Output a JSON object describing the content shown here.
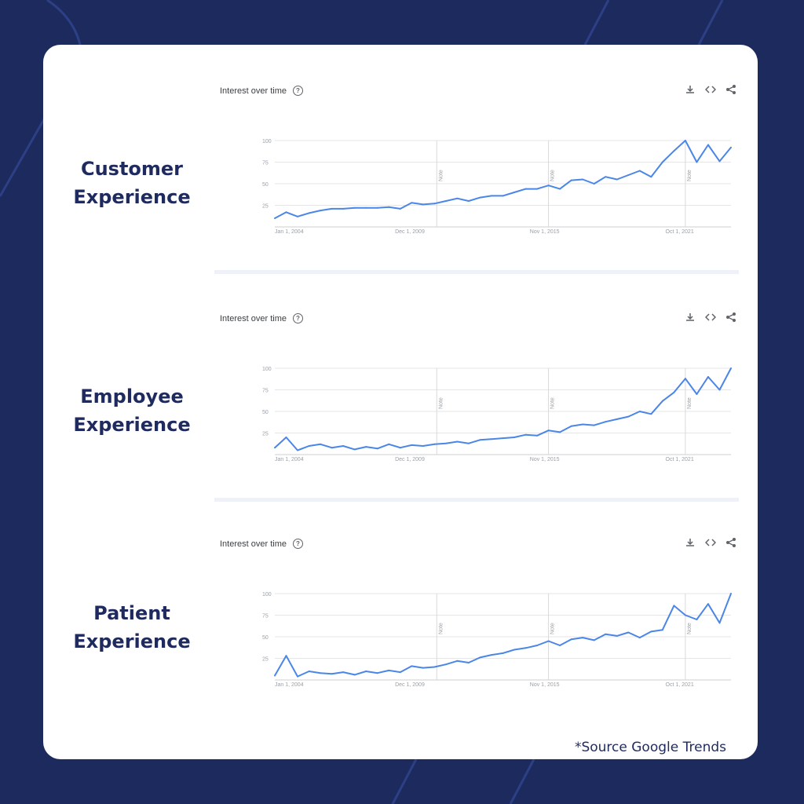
{
  "colors": {
    "background": "#1c2a5e",
    "card": "#ffffff",
    "label": "#1f2b5e",
    "line": "#4a86e8",
    "grid": "#e6e6e6"
  },
  "icons": [
    "download-icon",
    "embed-icon",
    "share-icon",
    "help-icon"
  ],
  "source_note": "*Source Google Trends",
  "sections": [
    {
      "label": "Customer\nExperience"
    },
    {
      "label": "Employee\nExperience"
    },
    {
      "label": "Patient\nExperience"
    }
  ],
  "chart_data": [
    {
      "type": "line",
      "title": "Interest over time",
      "y_ticks": [
        "100",
        "75",
        "50",
        "25"
      ],
      "ylim": [
        0,
        100
      ],
      "x_tick_labels": [
        "Jan 1, 2004",
        "Dec 1, 2009",
        "Nov 1, 2015",
        "Oct 1, 2021"
      ],
      "xlim": [
        2004,
        2024
      ],
      "x_ticks": [
        2004,
        2009.92,
        2015.83,
        2021.75
      ],
      "notes": [
        {
          "x": 2011.1,
          "label": "Note"
        },
        {
          "x": 2016.0,
          "label": "Note"
        },
        {
          "x": 2022.0,
          "label": "Note"
        }
      ],
      "x": [
        2004,
        2004.5,
        2005,
        2005.5,
        2006,
        2006.5,
        2007,
        2007.5,
        2008,
        2008.5,
        2009,
        2009.5,
        2010,
        2010.5,
        2011,
        2011.5,
        2012,
        2012.5,
        2013,
        2013.5,
        2014,
        2014.5,
        2015,
        2015.5,
        2016,
        2016.5,
        2017,
        2017.5,
        2018,
        2018.5,
        2019,
        2019.5,
        2020,
        2020.5,
        2021,
        2021.5,
        2022,
        2022.5,
        2023,
        2023.5,
        2024
      ],
      "values": [
        10,
        17,
        12,
        16,
        19,
        21,
        21,
        22,
        22,
        22,
        23,
        21,
        28,
        26,
        27,
        30,
        33,
        30,
        34,
        36,
        36,
        40,
        44,
        44,
        48,
        44,
        54,
        55,
        50,
        58,
        55,
        60,
        65,
        58,
        75,
        88,
        100,
        75,
        95,
        76,
        92
      ]
    },
    {
      "type": "line",
      "title": "Interest over time",
      "y_ticks": [
        "100",
        "75",
        "50",
        "25"
      ],
      "ylim": [
        0,
        100
      ],
      "x_tick_labels": [
        "Jan 1, 2004",
        "Dec 1, 2009",
        "Nov 1, 2015",
        "Oct 1, 2021"
      ],
      "xlim": [
        2004,
        2024
      ],
      "x_ticks": [
        2004,
        2009.92,
        2015.83,
        2021.75
      ],
      "notes": [
        {
          "x": 2011.1,
          "label": "Note"
        },
        {
          "x": 2016.0,
          "label": "Note"
        },
        {
          "x": 2022.0,
          "label": "Note"
        }
      ],
      "x": [
        2004,
        2004.5,
        2005,
        2005.5,
        2006,
        2006.5,
        2007,
        2007.5,
        2008,
        2008.5,
        2009,
        2009.5,
        2010,
        2010.5,
        2011,
        2011.5,
        2012,
        2012.5,
        2013,
        2013.5,
        2014,
        2014.5,
        2015,
        2015.5,
        2016,
        2016.5,
        2017,
        2017.5,
        2018,
        2018.5,
        2019,
        2019.5,
        2020,
        2020.5,
        2021,
        2021.5,
        2022,
        2022.5,
        2023,
        2023.5,
        2024
      ],
      "values": [
        8,
        20,
        5,
        10,
        12,
        8,
        10,
        6,
        9,
        7,
        12,
        8,
        11,
        10,
        12,
        13,
        15,
        13,
        17,
        18,
        19,
        20,
        23,
        22,
        28,
        26,
        33,
        35,
        34,
        38,
        41,
        44,
        50,
        47,
        62,
        72,
        88,
        70,
        90,
        75,
        100
      ]
    },
    {
      "type": "line",
      "title": "Interest over time",
      "y_ticks": [
        "100",
        "75",
        "50",
        "25"
      ],
      "ylim": [
        0,
        100
      ],
      "x_tick_labels": [
        "Jan 1, 2004",
        "Dec 1, 2009",
        "Nov 1, 2015",
        "Oct 1, 2021"
      ],
      "xlim": [
        2004,
        2024
      ],
      "x_ticks": [
        2004,
        2009.92,
        2015.83,
        2021.75
      ],
      "notes": [
        {
          "x": 2011.1,
          "label": "Note"
        },
        {
          "x": 2016.0,
          "label": "Note"
        },
        {
          "x": 2022.0,
          "label": "Note"
        }
      ],
      "x": [
        2004,
        2004.5,
        2005,
        2005.5,
        2006,
        2006.5,
        2007,
        2007.5,
        2008,
        2008.5,
        2009,
        2009.5,
        2010,
        2010.5,
        2011,
        2011.5,
        2012,
        2012.5,
        2013,
        2013.5,
        2014,
        2014.5,
        2015,
        2015.5,
        2016,
        2016.5,
        2017,
        2017.5,
        2018,
        2018.5,
        2019,
        2019.5,
        2020,
        2020.5,
        2021,
        2021.5,
        2022,
        2022.5,
        2023,
        2023.5,
        2024
      ],
      "values": [
        5,
        28,
        4,
        10,
        8,
        7,
        9,
        6,
        10,
        8,
        11,
        9,
        16,
        14,
        15,
        18,
        22,
        20,
        26,
        29,
        31,
        35,
        37,
        40,
        45,
        40,
        47,
        49,
        46,
        53,
        51,
        55,
        49,
        56,
        58,
        86,
        75,
        70,
        88,
        66,
        100
      ]
    }
  ]
}
